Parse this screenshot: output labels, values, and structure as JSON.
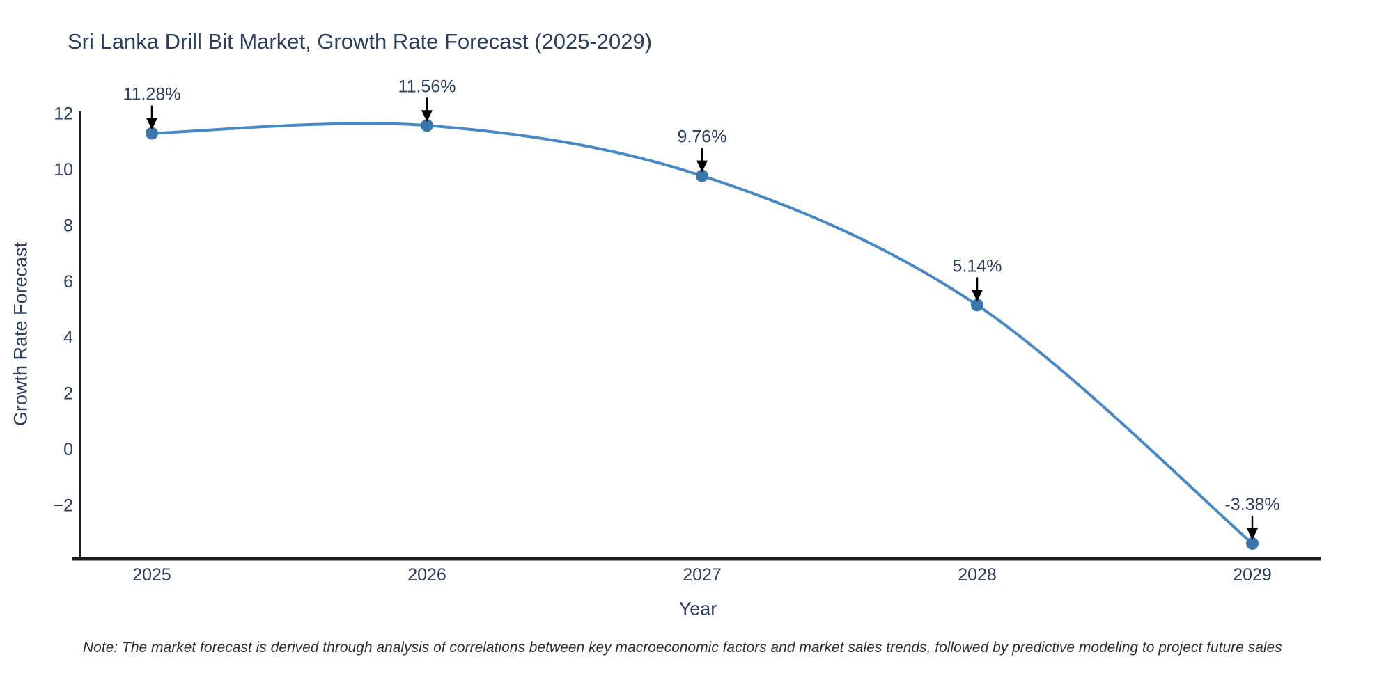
{
  "title": "Sri Lanka Drill Bit Market, Growth Rate Forecast (2025-2029)",
  "note": "Note: The market forecast is derived through analysis of correlations between key macroeconomic factors and market sales trends, followed by predictive modeling to project future sales",
  "chart_data": {
    "type": "line",
    "line_shape": "spline",
    "title": "Sri Lanka Drill Bit Market, Growth Rate Forecast (2025-2029)",
    "xlabel": "Year",
    "ylabel": "Growth Rate Forecast",
    "x": [
      2025,
      2026,
      2027,
      2028,
      2029
    ],
    "xticklabels": [
      "2025",
      "2026",
      "2027",
      "2028",
      "2029"
    ],
    "values": [
      11.28,
      11.56,
      9.76,
      5.14,
      -3.38
    ],
    "point_labels": [
      "11.28%",
      "11.56%",
      "9.76%",
      "5.14%",
      "-3.38%"
    ],
    "yticks": [
      {
        "value": -2,
        "label": "−2"
      },
      {
        "value": 0,
        "label": "0"
      },
      {
        "value": 2,
        "label": "2"
      },
      {
        "value": 4,
        "label": "4"
      },
      {
        "value": 6,
        "label": "6"
      },
      {
        "value": 8,
        "label": "8"
      },
      {
        "value": 10,
        "label": "10"
      },
      {
        "value": 12,
        "label": "12"
      }
    ],
    "ylim": [
      -3.93,
      12.0
    ],
    "grid": false,
    "legend": false,
    "annotations_have_arrows": true,
    "colors": {
      "line": "#4689c6",
      "marker": "#3976ac",
      "arrow": "#000000",
      "axis": "#1c1c1c",
      "text": "#2a3f5f",
      "note_text": "#2e2e2e",
      "background": "#ffffff"
    }
  }
}
